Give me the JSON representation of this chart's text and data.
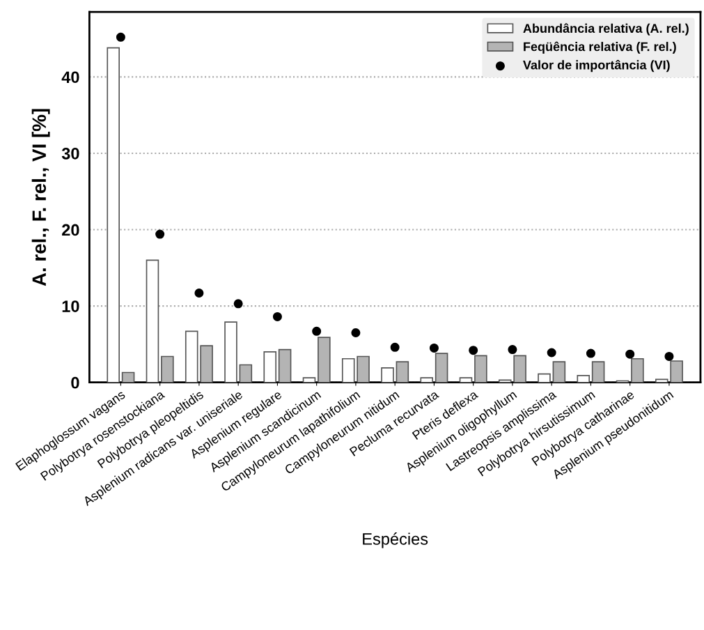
{
  "chart_data": {
    "type": "bar",
    "xlabel": "Espécies",
    "ylabel": "A. rel., F. rel., VI [%]",
    "categories": [
      "Elaphoglossum vagans",
      "Polybotrya rosenstockiana",
      "Polybotrya pleopeltidis",
      "Asplenium radicans var. uniseriale",
      "Asplenium regulare",
      "Asplenium scandicinum",
      "Campyloneurum lapathifolium",
      "Campyloneurum nitidum",
      "Pecluma recurvata",
      "Pteris deflexa",
      "Asplenium oligophyllum",
      "Lastreopsis amplissima",
      "Polybotrya hirsutissimum",
      "Polybotrya catharinae",
      "Asplenium pseudonitidum"
    ],
    "series": [
      {
        "name": "Abundância relativa (A. rel.)",
        "color": "#ffffff",
        "values": [
          43.8,
          16.0,
          6.7,
          7.9,
          4.0,
          0.6,
          3.1,
          1.9,
          0.6,
          0.6,
          0.3,
          1.1,
          0.9,
          0.2,
          0.4
        ]
      },
      {
        "name": "Feqüência relativa (F. rel.)",
        "color": "#b4b4b4",
        "values": [
          1.3,
          3.4,
          4.8,
          2.3,
          4.3,
          5.9,
          3.4,
          2.7,
          3.8,
          3.5,
          3.5,
          2.7,
          2.7,
          3.1,
          2.8
        ]
      },
      {
        "name": "Valor de importância (VI)",
        "type": "scatter",
        "color": "#000000",
        "marker": "circle",
        "values": [
          45.2,
          19.4,
          11.7,
          10.3,
          8.6,
          6.7,
          6.5,
          4.6,
          4.5,
          4.2,
          4.3,
          3.9,
          3.8,
          3.7,
          3.4
        ]
      }
    ],
    "ylim": [
      0,
      48.5
    ],
    "yticks": [
      0,
      10,
      20,
      30,
      40
    ],
    "grid": "y",
    "legend": "top right"
  }
}
